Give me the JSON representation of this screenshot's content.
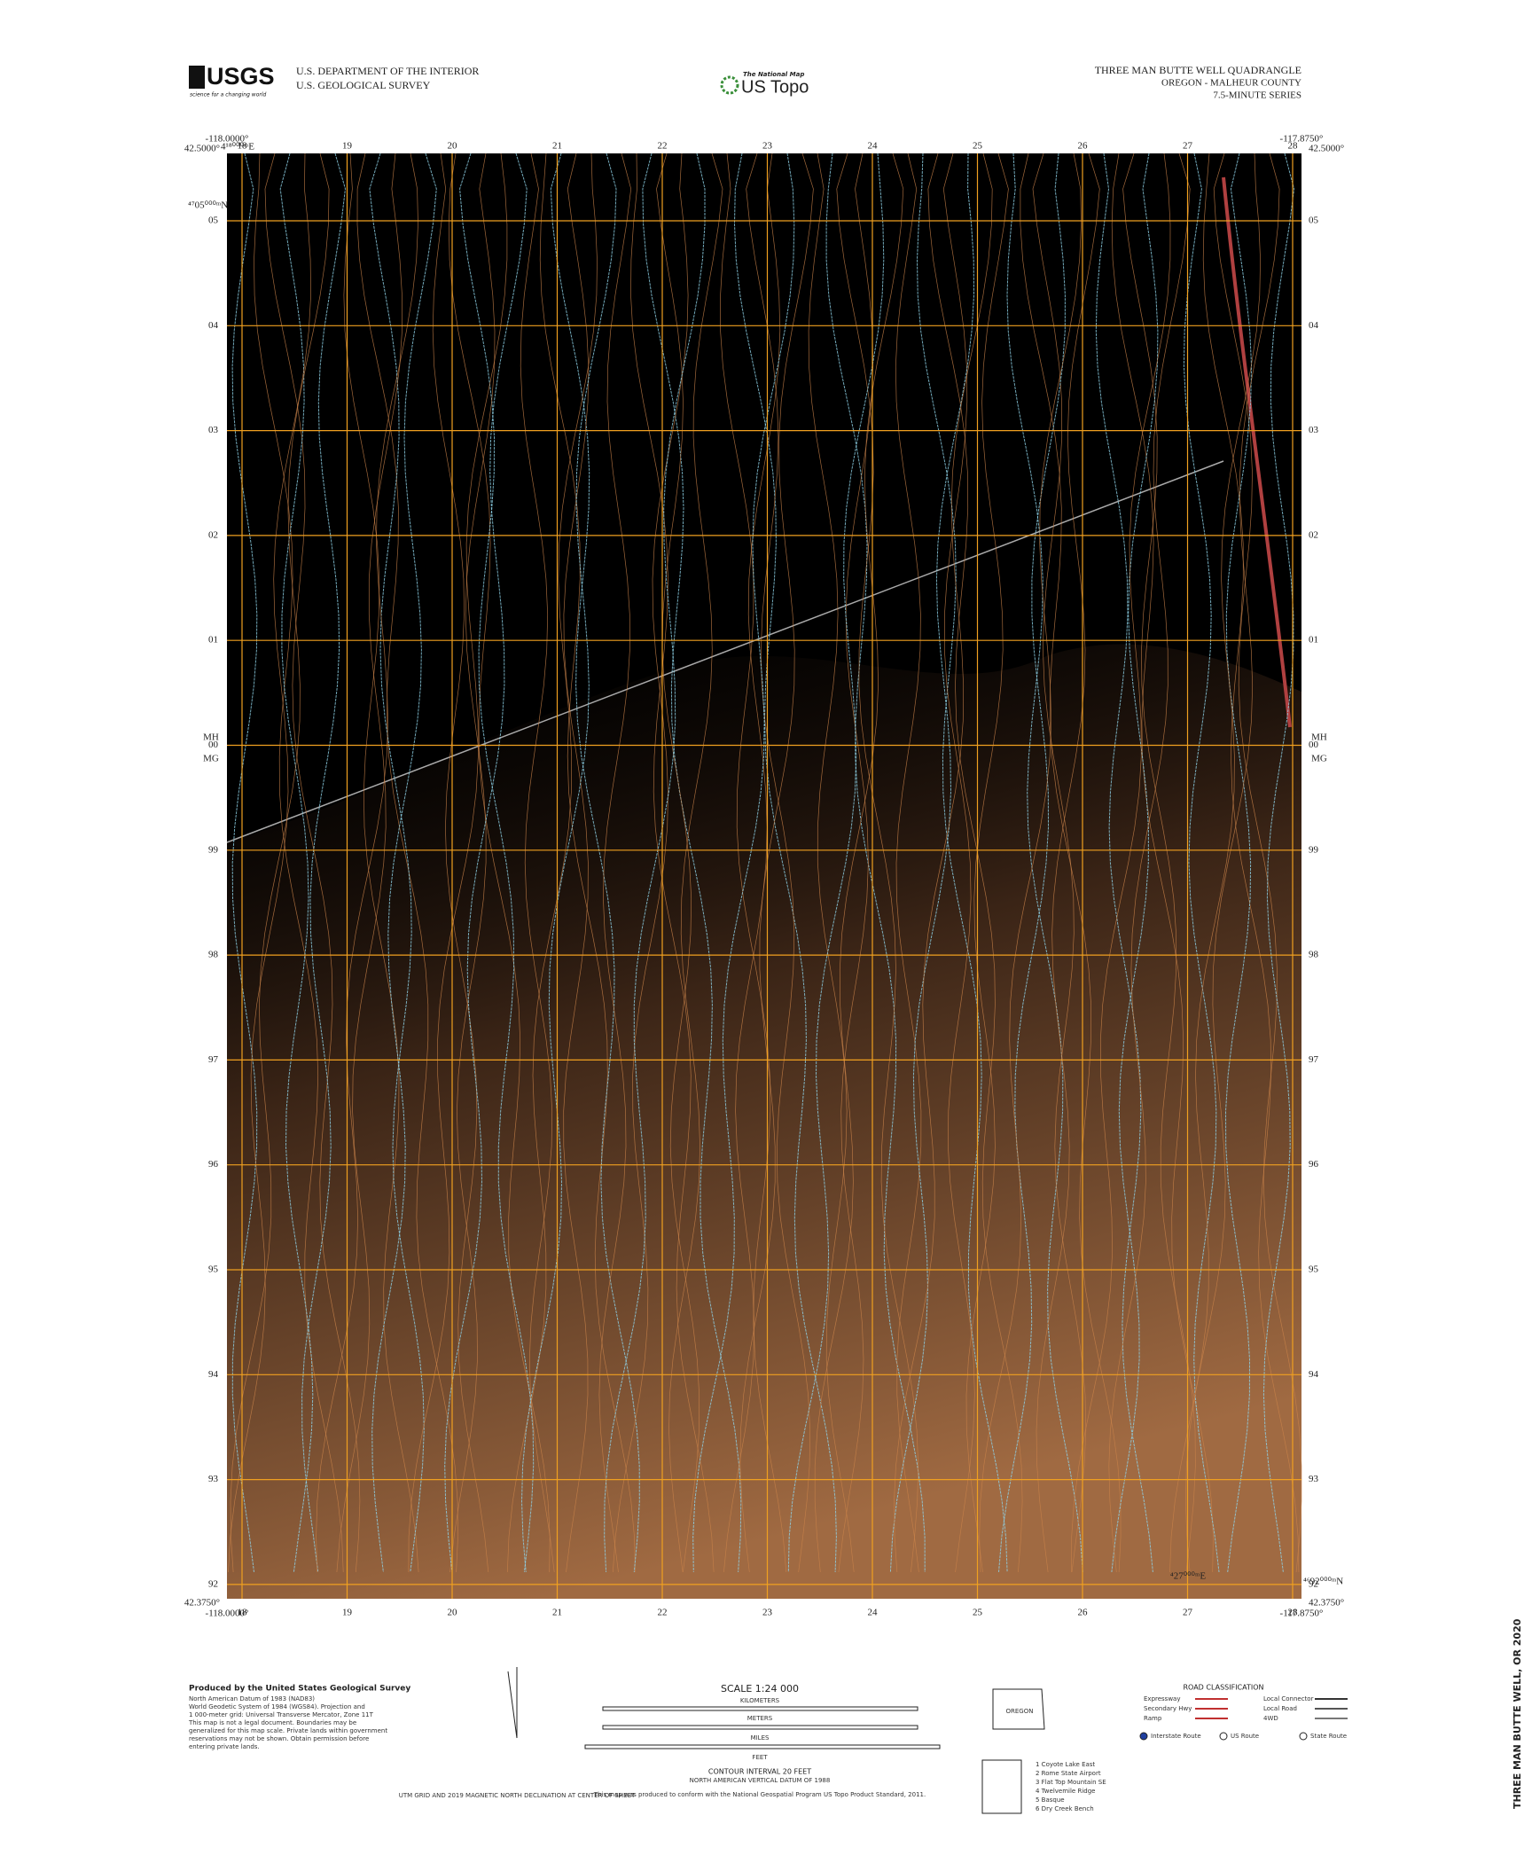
{
  "header": {
    "agency_logo": "USGS",
    "agency_tagline": "science for a changing world",
    "department": "U.S. DEPARTMENT OF THE INTERIOR",
    "survey": "U.S. GEOLOGICAL SURVEY",
    "product_small": "The National Map",
    "product": "US Topo",
    "quad_title": "THREE MAN BUTTE WELL QUADRANGLE",
    "state_county": "OREGON - MALHEUR COUNTY",
    "series": "7.5-MINUTE SERIES"
  },
  "map": {
    "corners": {
      "top_left_lon": "-118.0000°",
      "top_left_lat": "42.5000°",
      "top_right_lon": "-117.8750°",
      "top_right_lat": "42.5000°",
      "bottom_left_lat": "42.3750°",
      "bottom_left_lon": "-118.0000°",
      "bottom_right_lon": "-117.8750°",
      "bottom_right_lat": "42.3750°"
    },
    "easting_first": "4¹⁸⁰⁰⁰ᵐE",
    "easting_last": "⁴27⁰⁰⁰ᵐE",
    "northing_first": "⁴⁷05⁰⁰⁰ᵐN",
    "northing_last": "⁴⁶92⁰⁰⁰ᵐN",
    "eastings": [
      "18",
      "19",
      "20",
      "21",
      "22",
      "23",
      "24",
      "25",
      "26",
      "27",
      "28"
    ],
    "northings": [
      "05",
      "04",
      "03",
      "02",
      "01",
      "00",
      "99",
      "98",
      "97",
      "96",
      "95",
      "94",
      "93",
      "92"
    ],
    "decl_top": "MH",
    "decl_bottom": "MG"
  },
  "footer": {
    "producer": "Produced by the United States Geological Survey",
    "producer_notes": [
      "North American Datum of 1983 (NAD83)",
      "World Geodetic System of 1984 (WGS84). Projection and",
      "1 000-meter grid: Universal Transverse Mercator, Zone 11T",
      "This map is not a legal document. Boundaries may be",
      "generalized for this map scale. Private lands within government",
      "reservations may not be shown. Obtain permission before",
      "entering private lands."
    ],
    "scale": "SCALE 1:24 000",
    "kilometers": "KILOMETERS",
    "meters": "METERS",
    "miles": "MILES",
    "feet": "FEET",
    "contour": "CONTOUR INTERVAL 20 FEET",
    "datum": "NORTH AMERICAN VERTICAL DATUM OF 1988",
    "standard": "This map was produced to conform with the National Geospatial Program US Topo Product Standard, 2011.",
    "grid_note": "UTM GRID AND 2019 MAGNETIC NORTH DECLINATION AT CENTER OF SHEET",
    "state": "OREGON",
    "road_title": "ROAD CLASSIFICATION",
    "roads": [
      "Expressway",
      "Secondary Hwy",
      "Ramp",
      "Local Connector",
      "Local Road",
      "4WD"
    ],
    "route_shields": [
      "Interstate Route",
      "US Route",
      "State Route"
    ],
    "adjoining": [
      "1 Coyote Lake East",
      "2 Rome State Airport",
      "3 Flat Top Mountain SE",
      "4 Twelvemile Ridge",
      "5 Basque",
      "6 Dry Creek Bench"
    ],
    "edition": "THREE MAN BUTTE WELL, OR 2020"
  }
}
